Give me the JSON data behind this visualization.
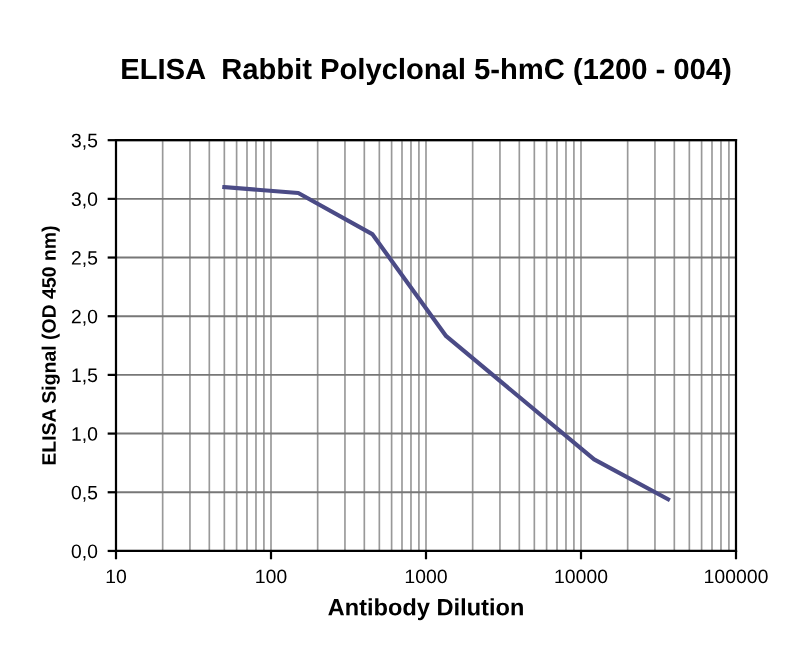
{
  "chart_data": {
    "type": "line",
    "title": "ELISA  Rabbit Polyclonal 5-hmC (1200 - 004)",
    "xlabel": "Antibody Dilution",
    "ylabel": "ELISA Signal (OD 450 nm)",
    "x": [
      50,
      150,
      450,
      1350,
      12150,
      36450
    ],
    "series": [
      {
        "color": "#4b4b86",
        "values": [
          3.1,
          3.05,
          2.7,
          1.83,
          0.78,
          0.44
        ]
      }
    ],
    "log": "x",
    "xlim": [
      10,
      100000
    ],
    "xticks": [
      10,
      100,
      1000,
      10000,
      100000
    ],
    "ylim": [
      0,
      3.5
    ],
    "yticks": [
      {
        "value": 0,
        "label": "0,0"
      },
      {
        "value": 0.5,
        "label": "0,5"
      },
      {
        "value": 1,
        "label": "1,0"
      },
      {
        "value": 1.5,
        "label": "1,5"
      },
      {
        "value": 2,
        "label": "2,0"
      },
      {
        "value": 2.5,
        "label": "2,5"
      },
      {
        "value": 3,
        "label": "3,0"
      },
      {
        "value": 3.5,
        "label": "3,5"
      }
    ],
    "grid": true,
    "marker": "none",
    "line_style": "solid"
  }
}
